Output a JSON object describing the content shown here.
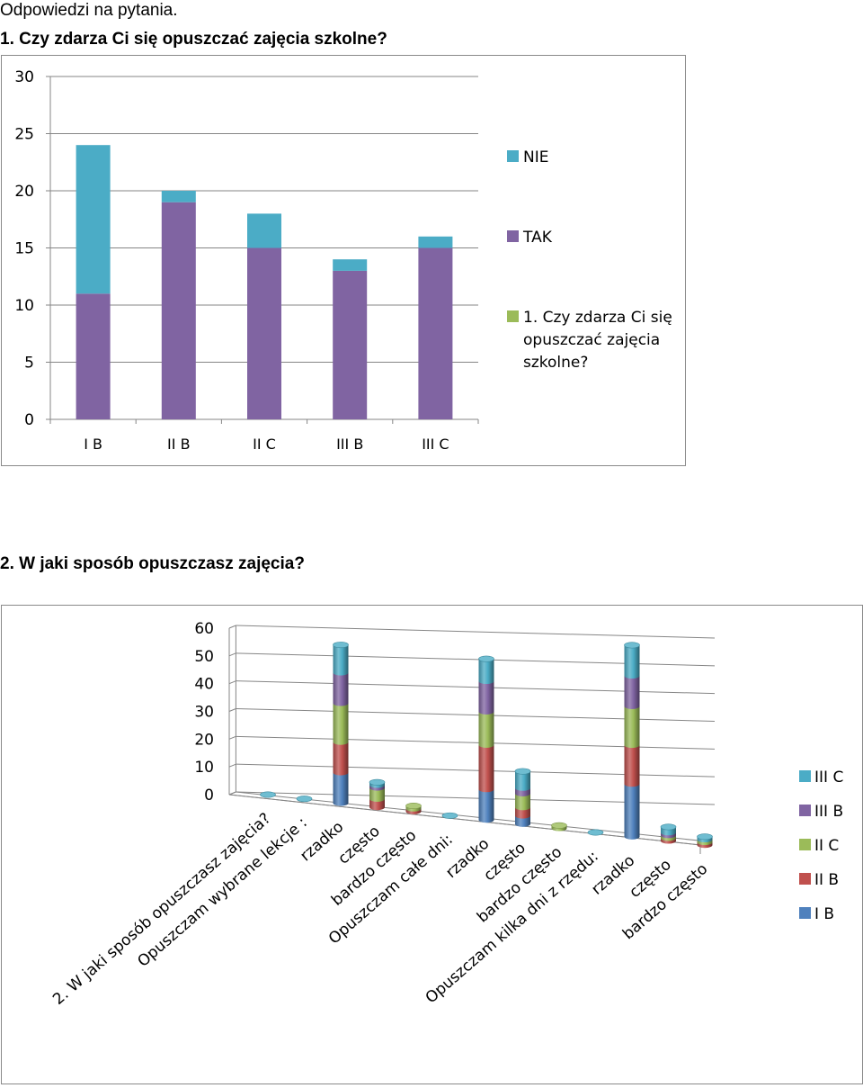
{
  "document": {
    "title": "Odpowiedzi na pytania.",
    "question1": "1. Czy zdarza Ci się opuszczać zajęcia szkolne?",
    "question2": "2. W jaki sposób opuszczasz zajęcia?"
  },
  "chart_data": [
    {
      "type": "bar",
      "stacked": true,
      "categories": [
        "I B",
        "II B",
        "II C",
        "III B",
        "III C"
      ],
      "series": [
        {
          "name": "1. Czy zdarza Ci się opuszczać zajęcia szkolne?",
          "values": [
            0,
            0,
            0,
            0,
            0
          ],
          "color": "#9bbb59"
        },
        {
          "name": "TAK",
          "values": [
            11,
            19,
            15,
            13,
            15
          ],
          "color": "#8064a2"
        },
        {
          "name": "NIE",
          "values": [
            13,
            1,
            3,
            1,
            1
          ],
          "color": "#4bacc6"
        }
      ],
      "legend_order": [
        "NIE",
        "TAK",
        "1. Czy zdarza Ci się opuszczać zajęcia szkolne?"
      ],
      "legend_position": "right",
      "ylim": [
        0,
        30
      ],
      "yticks": [
        0,
        5,
        10,
        15,
        20,
        25,
        30
      ],
      "grid": true
    },
    {
      "type": "bar",
      "style": "3d-stacked-cylinder",
      "categories": [
        "2. W jaki sposób opuszczasz zajęcia?",
        "Opuszczam wybrane lekcje :",
        "rzadko",
        "często",
        "bardzo często",
        "Opuszczam całe dni:",
        "rzadko",
        "często",
        "bardzo często",
        "Opuszczam kilka dni z rzędu:",
        "rzadko",
        "często",
        "bardzo często"
      ],
      "series": [
        {
          "name": "I B",
          "values": [
            0,
            0,
            11,
            0,
            0,
            0,
            11,
            3,
            0,
            0,
            19,
            0,
            0
          ],
          "color": "#4f81bd"
        },
        {
          "name": "II B",
          "values": [
            0,
            0,
            11,
            3,
            1,
            0,
            16,
            3,
            0,
            0,
            14,
            1,
            1
          ],
          "color": "#c0504d"
        },
        {
          "name": "II C",
          "values": [
            0,
            0,
            14,
            4,
            1,
            0,
            12,
            5,
            1,
            0,
            14,
            1,
            1
          ],
          "color": "#9bbb59"
        },
        {
          "name": "III B",
          "values": [
            0,
            0,
            11,
            1,
            0,
            0,
            11,
            2,
            0,
            0,
            11,
            1,
            0
          ],
          "color": "#8064a2"
        },
        {
          "name": "III C",
          "values": [
            0,
            0,
            10,
            1,
            0,
            0,
            8,
            6,
            0,
            0,
            11,
            2,
            1
          ],
          "color": "#4bacc6"
        }
      ],
      "legend_order": [
        "III C",
        "III B",
        "II C",
        "II B",
        "I B"
      ],
      "legend_position": "right",
      "ylim": [
        0,
        60
      ],
      "yticks": [
        0,
        10,
        20,
        30,
        40,
        50,
        60
      ],
      "grid": true
    }
  ]
}
